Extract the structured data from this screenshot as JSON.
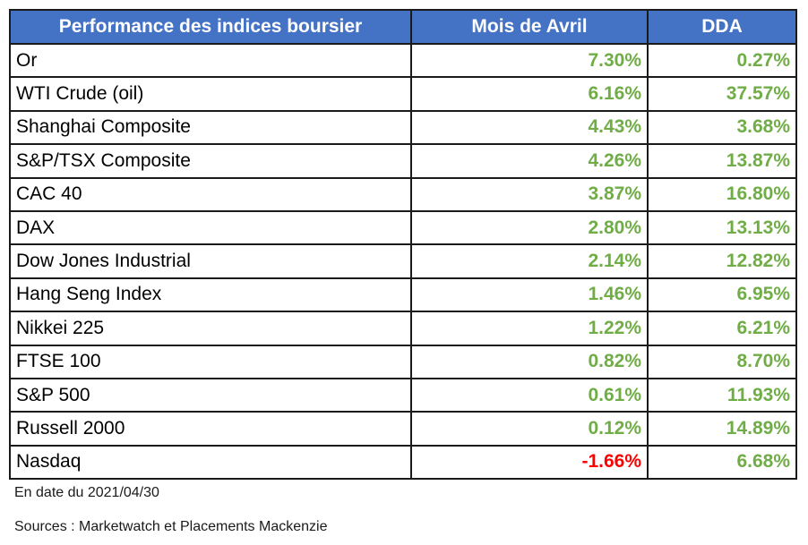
{
  "table": {
    "headers": [
      "Performance des indices boursier",
      "Mois de Avril",
      "DDA"
    ],
    "rows": [
      {
        "name": "Or",
        "month": "7.30%",
        "ytd": "0.27%"
      },
      {
        "name": "WTI Crude (oil)",
        "month": "6.16%",
        "ytd": "37.57%"
      },
      {
        "name": "Shanghai Composite",
        "month": "4.43%",
        "ytd": "3.68%"
      },
      {
        "name": "S&P/TSX Composite",
        "month": "4.26%",
        "ytd": "13.87%"
      },
      {
        "name": "CAC 40",
        "month": "3.87%",
        "ytd": "16.80%"
      },
      {
        "name": "DAX",
        "month": "2.80%",
        "ytd": "13.13%"
      },
      {
        "name": "Dow Jones Industrial",
        "month": "2.14%",
        "ytd": "12.82%"
      },
      {
        "name": "Hang Seng Index",
        "month": "1.46%",
        "ytd": "6.95%"
      },
      {
        "name": "Nikkei 225",
        "month": "1.22%",
        "ytd": "6.21%"
      },
      {
        "name": "FTSE 100",
        "month": "0.82%",
        "ytd": "8.70%"
      },
      {
        "name": "S&P 500",
        "month": "0.61%",
        "ytd": "11.93%"
      },
      {
        "name": "Russell 2000",
        "month": "0.12%",
        "ytd": "14.89%"
      },
      {
        "name": "Nasdaq",
        "month": "-1.66%",
        "ytd": "6.68%"
      }
    ]
  },
  "footer": {
    "date": "En date du 2021/04/30",
    "sources": "Sources : Marketwatch et Placements Mackenzie"
  },
  "colors": {
    "header_bg": "#4472c4",
    "header_text": "#ffffff",
    "positive": "#70ad47",
    "negative": "#ff0000",
    "border": "#1a1a1a"
  }
}
